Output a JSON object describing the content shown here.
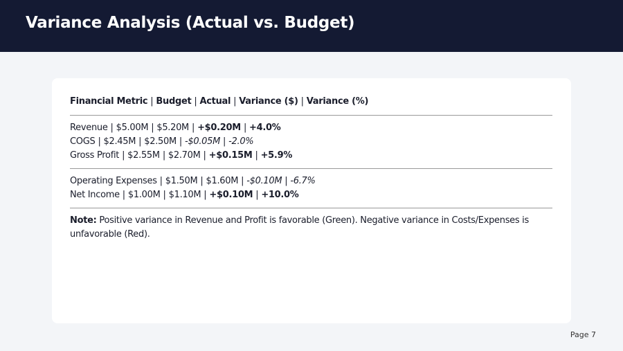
{
  "header": {
    "title": "Variance Analysis (Actual vs. Budget)"
  },
  "table": {
    "separator": "|",
    "columns": [
      "Financial Metric",
      "Budget",
      "Actual",
      "Variance ($)",
      "Variance (%)"
    ],
    "groups": [
      [
        {
          "cells": [
            "Revenue",
            "$5.00M",
            "$5.20M",
            "+$0.20M",
            "+4.0%"
          ],
          "emphasis": "bold"
        },
        {
          "cells": [
            "COGS",
            "$2.45M",
            "$2.50M",
            "-$0.05M",
            "-2.0%"
          ],
          "emphasis": "italic"
        },
        {
          "cells": [
            "Gross Profit",
            "$2.55M",
            "$2.70M",
            "+$0.15M",
            "+5.9%"
          ],
          "emphasis": "bold"
        }
      ],
      [
        {
          "cells": [
            "Operating Expenses",
            "$1.50M",
            "$1.60M",
            "-$0.10M",
            "-6.7%"
          ],
          "emphasis": "italic"
        },
        {
          "cells": [
            "Net Income",
            "$1.00M",
            "$1.10M",
            "+$0.10M",
            "+10.0%"
          ],
          "emphasis": "bold"
        }
      ]
    ]
  },
  "note": {
    "label": "Note:",
    "text": "Positive variance in Revenue and Profit is favorable (Green). Negative variance in Costs/Expenses is unfavorable (Red)."
  },
  "footer": {
    "page": "Page 7"
  }
}
